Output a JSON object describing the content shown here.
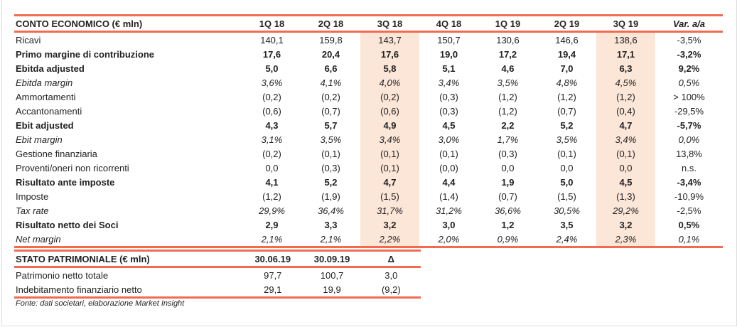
{
  "colors": {
    "accent": "#f26b50",
    "highlight": "#fce6d8"
  },
  "conto_economico": {
    "title": "CONTO ECONOMICO (€ mln)",
    "columns": [
      "1Q 18",
      "2Q 18",
      "3Q 18",
      "4Q 18",
      "1Q 19",
      "2Q 19",
      "3Q 19",
      "Var. a/a"
    ],
    "highlighted_columns": [
      "3Q 18",
      "3Q 19"
    ],
    "rows": [
      {
        "label": "Ricavi",
        "style": "normal",
        "values": [
          "140,1",
          "159,8",
          "143,7",
          "150,7",
          "130,6",
          "146,6",
          "138,6",
          "-3,5%"
        ]
      },
      {
        "label": "Primo margine di contribuzione",
        "style": "bold",
        "values": [
          "17,6",
          "20,4",
          "17,6",
          "19,0",
          "17,2",
          "19,4",
          "17,1",
          "-3,2%"
        ]
      },
      {
        "label": "Ebitda adjusted",
        "style": "bold",
        "values": [
          "5,0",
          "6,6",
          "5,8",
          "5,1",
          "4,6",
          "7,0",
          "6,3",
          "9,2%"
        ]
      },
      {
        "label": "Ebitda margin",
        "style": "italic",
        "values": [
          "3,6%",
          "4,1%",
          "4,0%",
          "3,4%",
          "3,5%",
          "4,8%",
          "4,5%",
          "0,5%"
        ]
      },
      {
        "label": "Ammortamenti",
        "style": "normal",
        "values": [
          "(0,2)",
          "(0,2)",
          "(0,2)",
          "(0,3)",
          "(1,2)",
          "(1,2)",
          "(1,2)",
          "> 100%"
        ]
      },
      {
        "label": "Accantonamenti",
        "style": "normal",
        "values": [
          "(0,6)",
          "(0,7)",
          "(0,6)",
          "(0,3)",
          "(1,2)",
          "(0,7)",
          "(0,4)",
          "-29,5%"
        ]
      },
      {
        "label": "Ebit adjusted",
        "style": "bold",
        "values": [
          "4,3",
          "5,7",
          "4,9",
          "4,5",
          "2,2",
          "5,2",
          "4,7",
          "-5,7%"
        ]
      },
      {
        "label": "Ebit margin",
        "style": "italic",
        "values": [
          "3,1%",
          "3,5%",
          "3,4%",
          "3,0%",
          "1,7%",
          "3,5%",
          "3,4%",
          "0,0%"
        ]
      },
      {
        "label": "Gestione finanziaria",
        "style": "normal",
        "values": [
          "(0,2)",
          "(0,1)",
          "(0,1)",
          "(0,1)",
          "(0,3)",
          "(0,1)",
          "(0,1)",
          "13,8%"
        ]
      },
      {
        "label": "Proventi/oneri non ricorrenti",
        "style": "normal",
        "values": [
          "0,0",
          "(0,3)",
          "(0,1)",
          "(0,0)",
          "0,0",
          "0,0",
          "0,0",
          "n.s."
        ]
      },
      {
        "label": "Risultato ante imposte",
        "style": "bold",
        "values": [
          "4,1",
          "5,2",
          "4,7",
          "4,4",
          "1,9",
          "5,0",
          "4,5",
          "-3,4%"
        ]
      },
      {
        "label": "Imposte",
        "style": "normal",
        "values": [
          "(1,2)",
          "(1,9)",
          "(1,5)",
          "(1,4)",
          "(0,7)",
          "(1,5)",
          "(1,3)",
          "-10,9%"
        ]
      },
      {
        "label": "Tax rate",
        "style": "italic",
        "values": [
          "29,9%",
          "36,4%",
          "31,7%",
          "31,2%",
          "36,6%",
          "30,5%",
          "29,2%",
          "-2,5%"
        ]
      },
      {
        "label": "Risultato netto dei Soci",
        "style": "bold",
        "values": [
          "2,9",
          "3,3",
          "3,2",
          "3,0",
          "1,2",
          "3,5",
          "3,2",
          "0,5%"
        ]
      },
      {
        "label": "Net margin",
        "style": "italic",
        "values": [
          "2,1%",
          "2,1%",
          "2,2%",
          "2,0%",
          "0,9%",
          "2,4%",
          "2,3%",
          "0,1%"
        ]
      }
    ]
  },
  "stato_patrimoniale": {
    "title": "STATO PATRIMONIALE (€ mln)",
    "columns": [
      "30.06.19",
      "30.09.19",
      "Δ"
    ],
    "rows": [
      {
        "label": "Patrimonio netto totale",
        "values": [
          "97,7",
          "100,7",
          "3,0"
        ]
      },
      {
        "label": "Indebitamento finanziario netto",
        "values": [
          "29,1",
          "19,9",
          "(9,2)"
        ]
      }
    ]
  },
  "footnote": "Fonte: dati societari, elaborazione Market Insight"
}
